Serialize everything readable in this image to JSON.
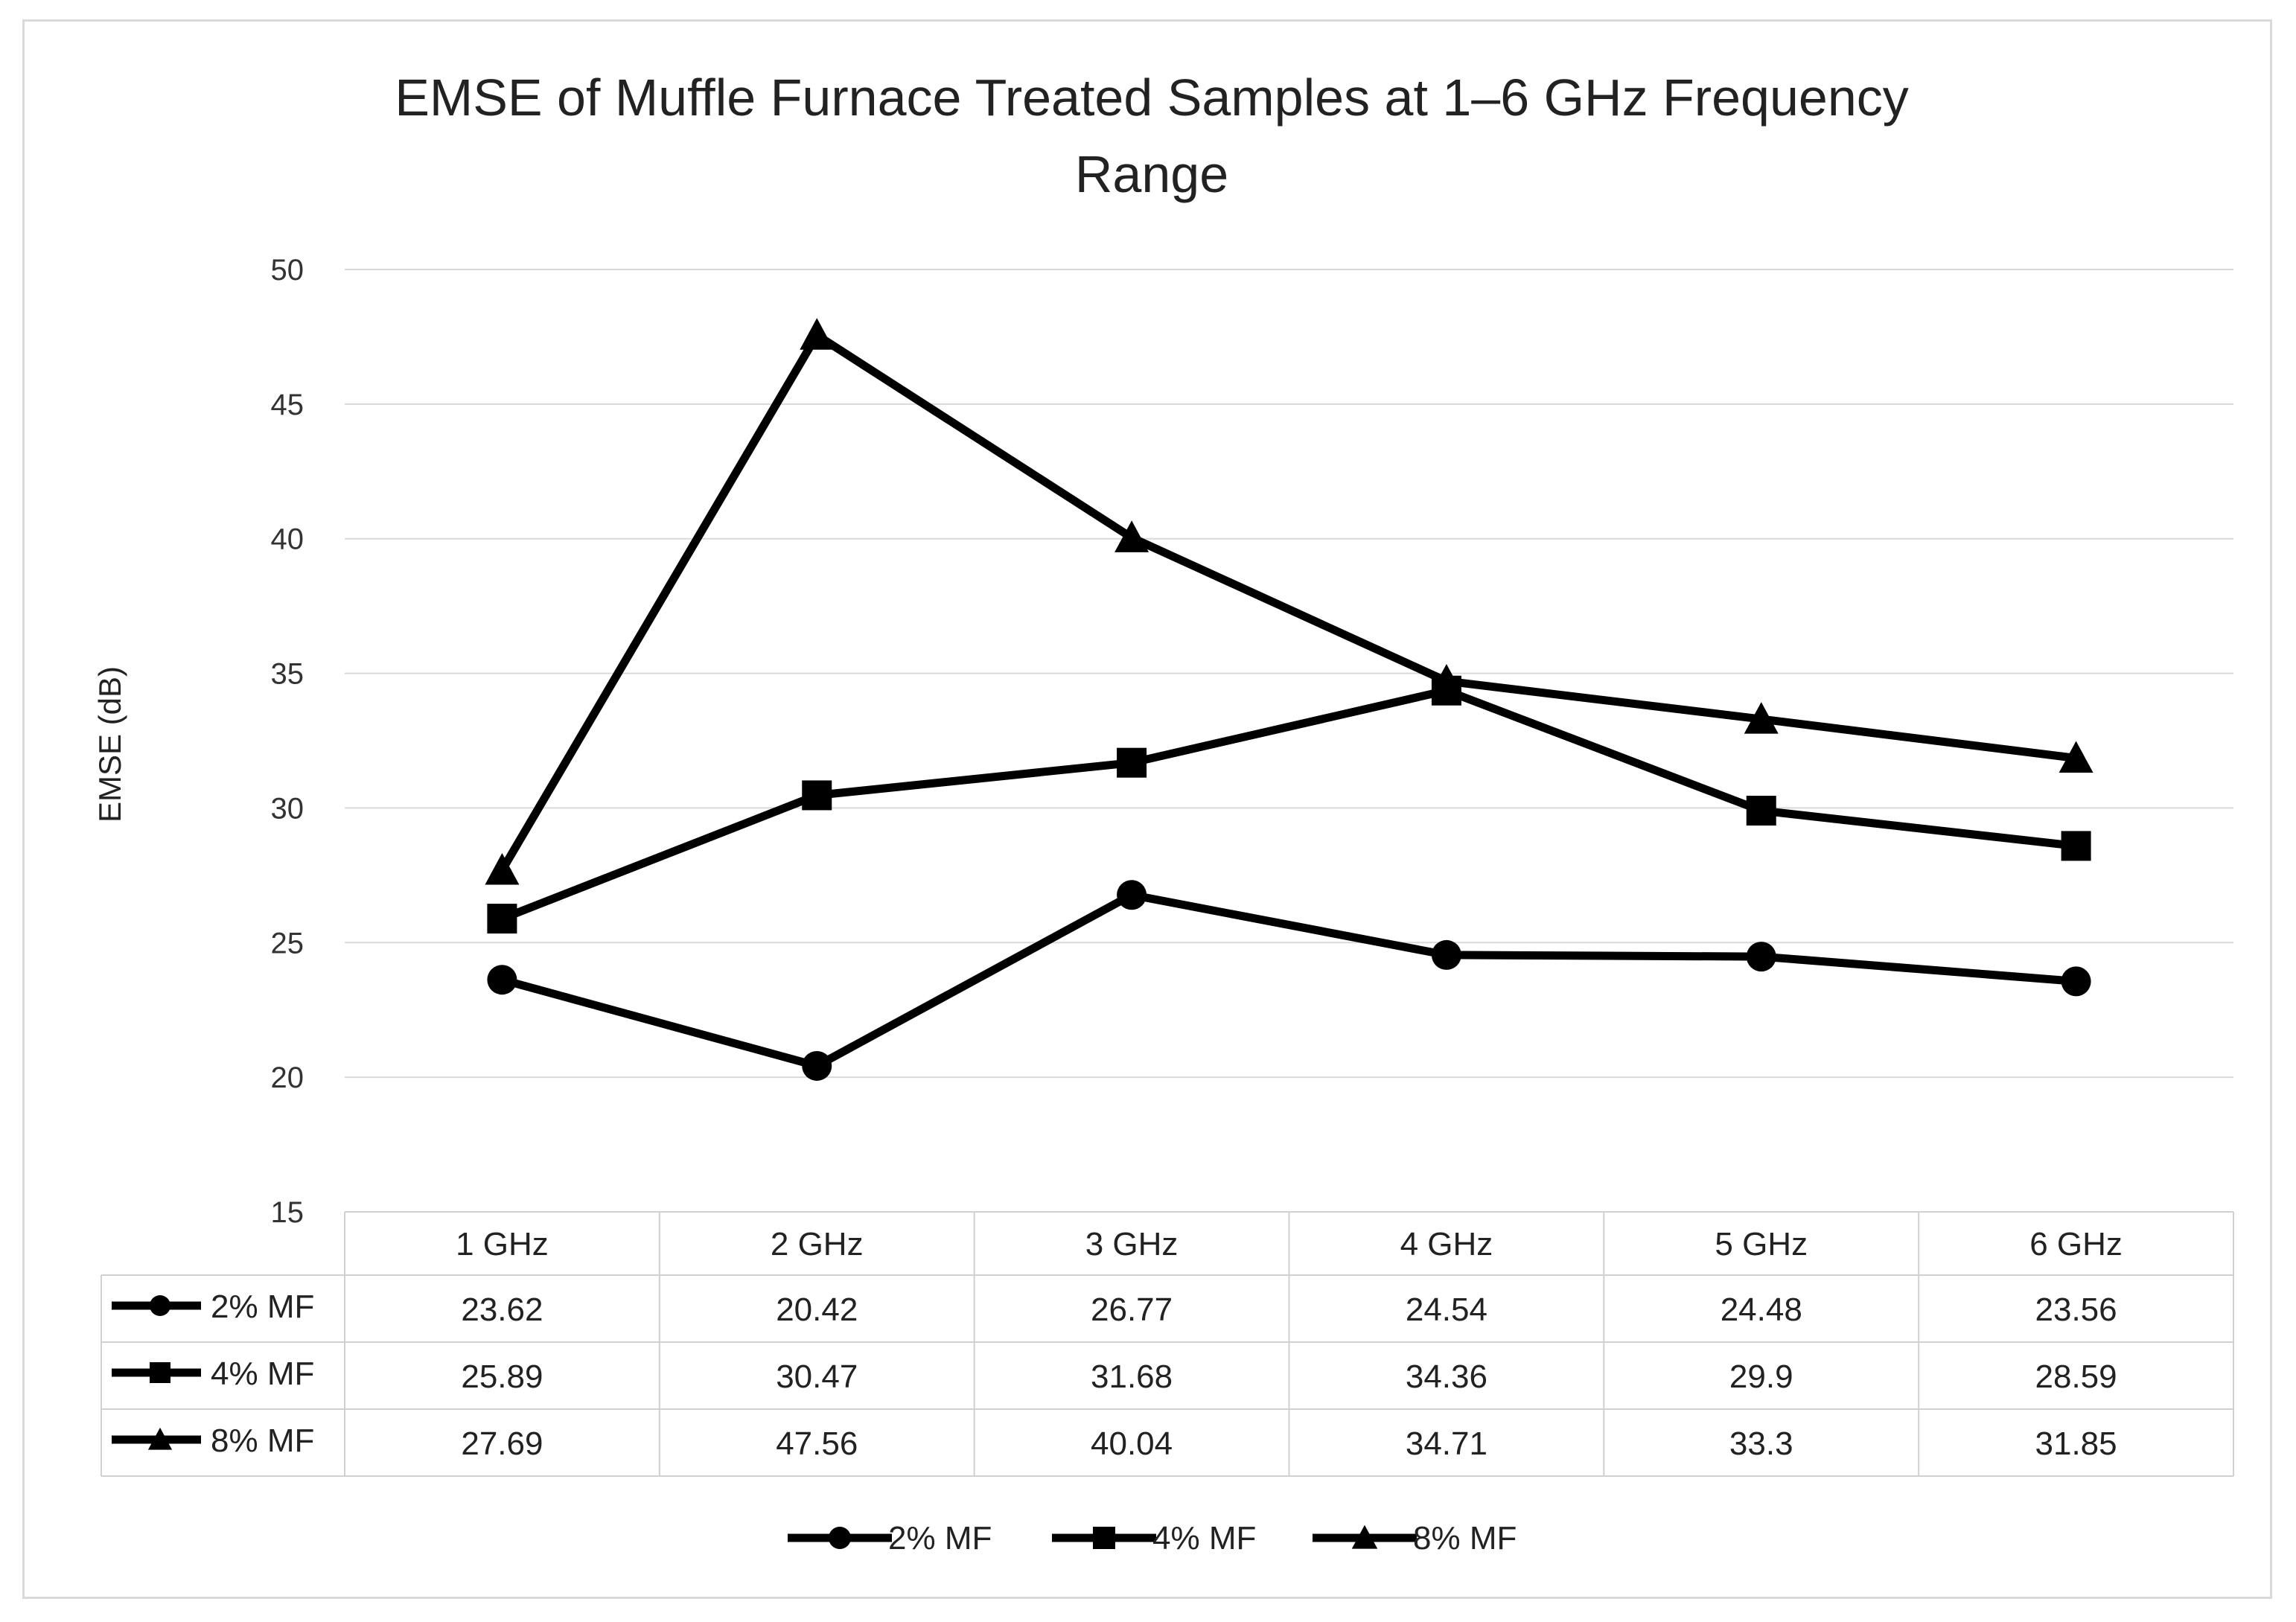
{
  "chart_data": {
    "type": "line",
    "title": "EMSE  of Muffle Furnace Treated Samples at 1–6 GHz Frequency Range",
    "title_lines": [
      "EMSE  of Muffle Furnace Treated Samples at 1–6 GHz Frequency",
      "Range"
    ],
    "xlabel": "",
    "ylabel": "EMSE (dB)",
    "ylim": [
      15,
      50
    ],
    "yticks": [
      15,
      20,
      25,
      30,
      35,
      40,
      45,
      50
    ],
    "grid": true,
    "legend_position": "bottom",
    "data_table": true,
    "categories": [
      "1 GHz",
      "2 GHz",
      "3 GHz",
      "4 GHz",
      "5 GHz",
      "6 GHz"
    ],
    "series": [
      {
        "name": "2% MF",
        "marker": "circle",
        "color": "#000000",
        "values": [
          23.62,
          20.42,
          26.77,
          24.54,
          24.48,
          23.56
        ]
      },
      {
        "name": "4% MF",
        "marker": "square",
        "color": "#000000",
        "values": [
          25.89,
          30.47,
          31.68,
          34.36,
          29.9,
          28.59
        ]
      },
      {
        "name": "8% MF",
        "marker": "triangle",
        "color": "#000000",
        "values": [
          27.69,
          47.56,
          40.04,
          34.71,
          33.3,
          31.85
        ]
      }
    ]
  }
}
